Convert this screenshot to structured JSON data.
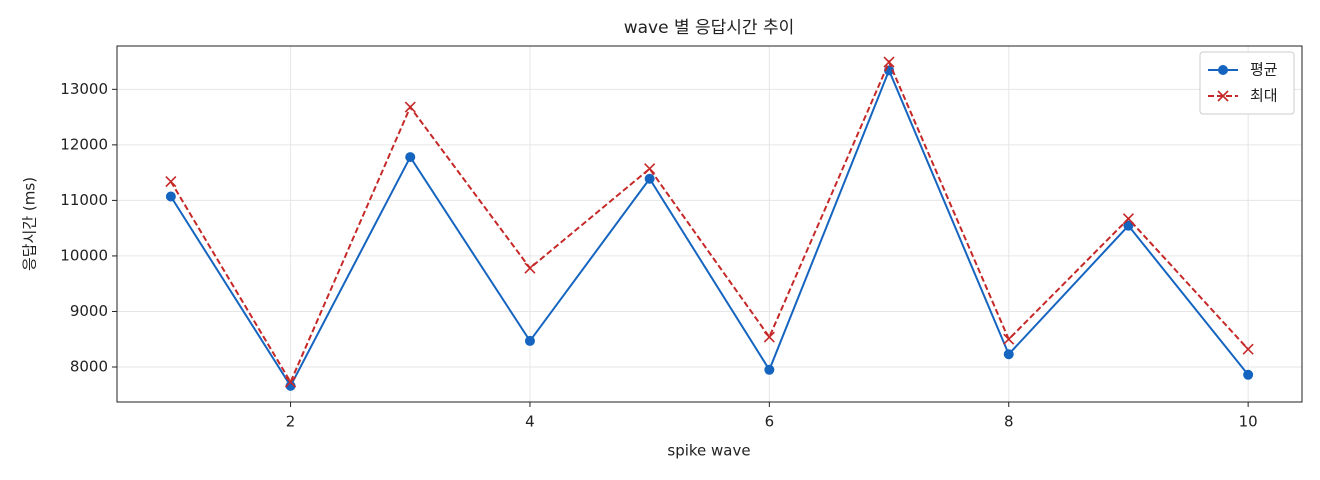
{
  "chart_data": {
    "type": "line",
    "title": "wave 별 응답시간 추이",
    "x_label": "spike wave",
    "y_label": "응답시간 (ms)",
    "x": [
      1,
      2,
      3,
      4,
      5,
      6,
      7,
      8,
      9,
      10
    ],
    "series": [
      {
        "name": "평균",
        "color": "#1565c0",
        "linestyle": "solid",
        "marker": "o",
        "values": [
          11070,
          7660,
          11780,
          8470,
          11390,
          7950,
          13340,
          8230,
          10545,
          7860
        ]
      },
      {
        "name": "최대",
        "color": "#c62828",
        "linestyle": "dashed",
        "marker": "x",
        "values": [
          11340,
          7730,
          12680,
          9780,
          11570,
          8540,
          13490,
          8500,
          10670,
          8320
        ]
      }
    ],
    "xlim": [
      0.55,
      10.45
    ],
    "ylim": [
      7370,
      13780
    ],
    "xticks": [
      2,
      4,
      6,
      8,
      10
    ],
    "yticks": [
      8000,
      9000,
      10000,
      11000,
      12000,
      13000
    ],
    "grid": true,
    "legend": "upper right"
  }
}
